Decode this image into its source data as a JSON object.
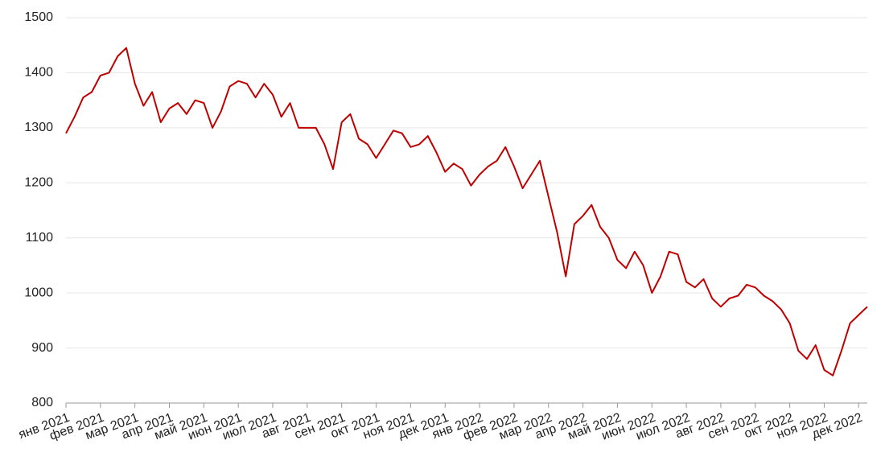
{
  "chart_data": {
    "type": "line",
    "categories": [
      "янв 2021",
      null,
      null,
      null,
      "фев 2021",
      null,
      null,
      null,
      "мар 2021",
      null,
      null,
      null,
      "апр 2021",
      null,
      null,
      null,
      "май 2021",
      null,
      null,
      null,
      "июн 2021",
      null,
      null,
      null,
      "июл 2021",
      null,
      null,
      null,
      "авг 2021",
      null,
      null,
      null,
      "сен 2021",
      null,
      null,
      null,
      "окт 2021",
      null,
      null,
      null,
      "ноя 2021",
      null,
      null,
      null,
      "дек 2021",
      null,
      null,
      null,
      "янв 2022",
      null,
      null,
      null,
      "фев 2022",
      null,
      null,
      null,
      "мар 2022",
      null,
      null,
      null,
      "апр 2022",
      null,
      null,
      null,
      "май 2022",
      null,
      null,
      null,
      "июн 2022",
      null,
      null,
      null,
      "июл 2022",
      null,
      null,
      null,
      "авг 2022",
      null,
      null,
      null,
      "сен 2022",
      null,
      null,
      null,
      "окт 2022",
      null,
      null,
      null,
      "ноя 2022",
      null,
      null,
      null,
      "дек 2022",
      null
    ],
    "values": [
      1290,
      1320,
      1355,
      1365,
      1395,
      1400,
      1430,
      1445,
      1380,
      1340,
      1365,
      1310,
      1335,
      1345,
      1325,
      1350,
      1345,
      1300,
      1330,
      1375,
      1385,
      1380,
      1355,
      1380,
      1360,
      1320,
      1345,
      1300,
      1300,
      1300,
      1270,
      1225,
      1310,
      1325,
      1280,
      1270,
      1245,
      1270,
      1295,
      1290,
      1265,
      1270,
      1285,
      1255,
      1220,
      1235,
      1225,
      1195,
      1215,
      1230,
      1240,
      1265,
      1230,
      1190,
      1215,
      1240,
      1175,
      1110,
      1030,
      1125,
      1140,
      1160,
      1120,
      1100,
      1060,
      1045,
      1075,
      1050,
      1000,
      1030,
      1075,
      1070,
      1020,
      1010,
      1025,
      990,
      975,
      990,
      995,
      1015,
      1010,
      995,
      985,
      970,
      945,
      895,
      880,
      905,
      860,
      850,
      895,
      945,
      960,
      975
    ],
    "color": "#c00000",
    "ylim": [
      800,
      1500
    ],
    "yticks": [
      800,
      900,
      1000,
      1100,
      1200,
      1300,
      1400,
      1500
    ],
    "grid": true
  }
}
